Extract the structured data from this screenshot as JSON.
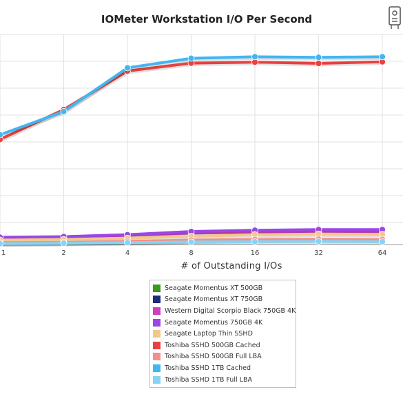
{
  "chart_data": {
    "type": "line",
    "title": "IOMeter Workstation I/O Per Second",
    "xlabel": "# of Outstanding I/Os",
    "ylabel": "",
    "categories": [
      "1",
      "2",
      "4",
      "8",
      "16",
      "32",
      "64"
    ],
    "grid": true,
    "legend_position": "bottom",
    "series": [
      {
        "name": "Seagate Momentus XT 500GB",
        "color": "#3a9a1e",
        "values": [
          4,
          5,
          8,
          12,
          14,
          15,
          14
        ]
      },
      {
        "name": "Seagate Momentus XT 750GB",
        "color": "#1f2a7a",
        "values": [
          5,
          6,
          9,
          13,
          15,
          16,
          15
        ]
      },
      {
        "name": "Western Digital Scorpio Black 750GB 4K",
        "color": "#d03fc0",
        "values": [
          22,
          24,
          29,
          36,
          39,
          40,
          40
        ]
      },
      {
        "name": "Seagate Momentus 750GB 4K",
        "color": "#9b47e6",
        "values": [
          23,
          25,
          31,
          41,
          45,
          47,
          47
        ]
      },
      {
        "name": "Seagate Laptop Thin SSHD",
        "color": "#f2c88a",
        "values": [
          14,
          16,
          20,
          26,
          31,
          33,
          32
        ]
      },
      {
        "name": "Toshiba SSHD 500GB Cached",
        "color": "#e8413f",
        "values": [
          330,
          424,
          545,
          570,
          573,
          569,
          574
        ]
      },
      {
        "name": "Toshiba SSHD 500GB Full LBA",
        "color": "#f2908a",
        "values": [
          6,
          7,
          10,
          14,
          16,
          17,
          16
        ]
      },
      {
        "name": "Toshiba SSHD 1TB Cached",
        "color": "#41b6f0",
        "values": [
          345,
          418,
          555,
          585,
          590,
          588,
          590
        ]
      },
      {
        "name": "Toshiba SSHD 1TB Full LBA",
        "color": "#86d3f5",
        "values": [
          3,
          4,
          6,
          8,
          9,
          10,
          9
        ]
      }
    ]
  }
}
